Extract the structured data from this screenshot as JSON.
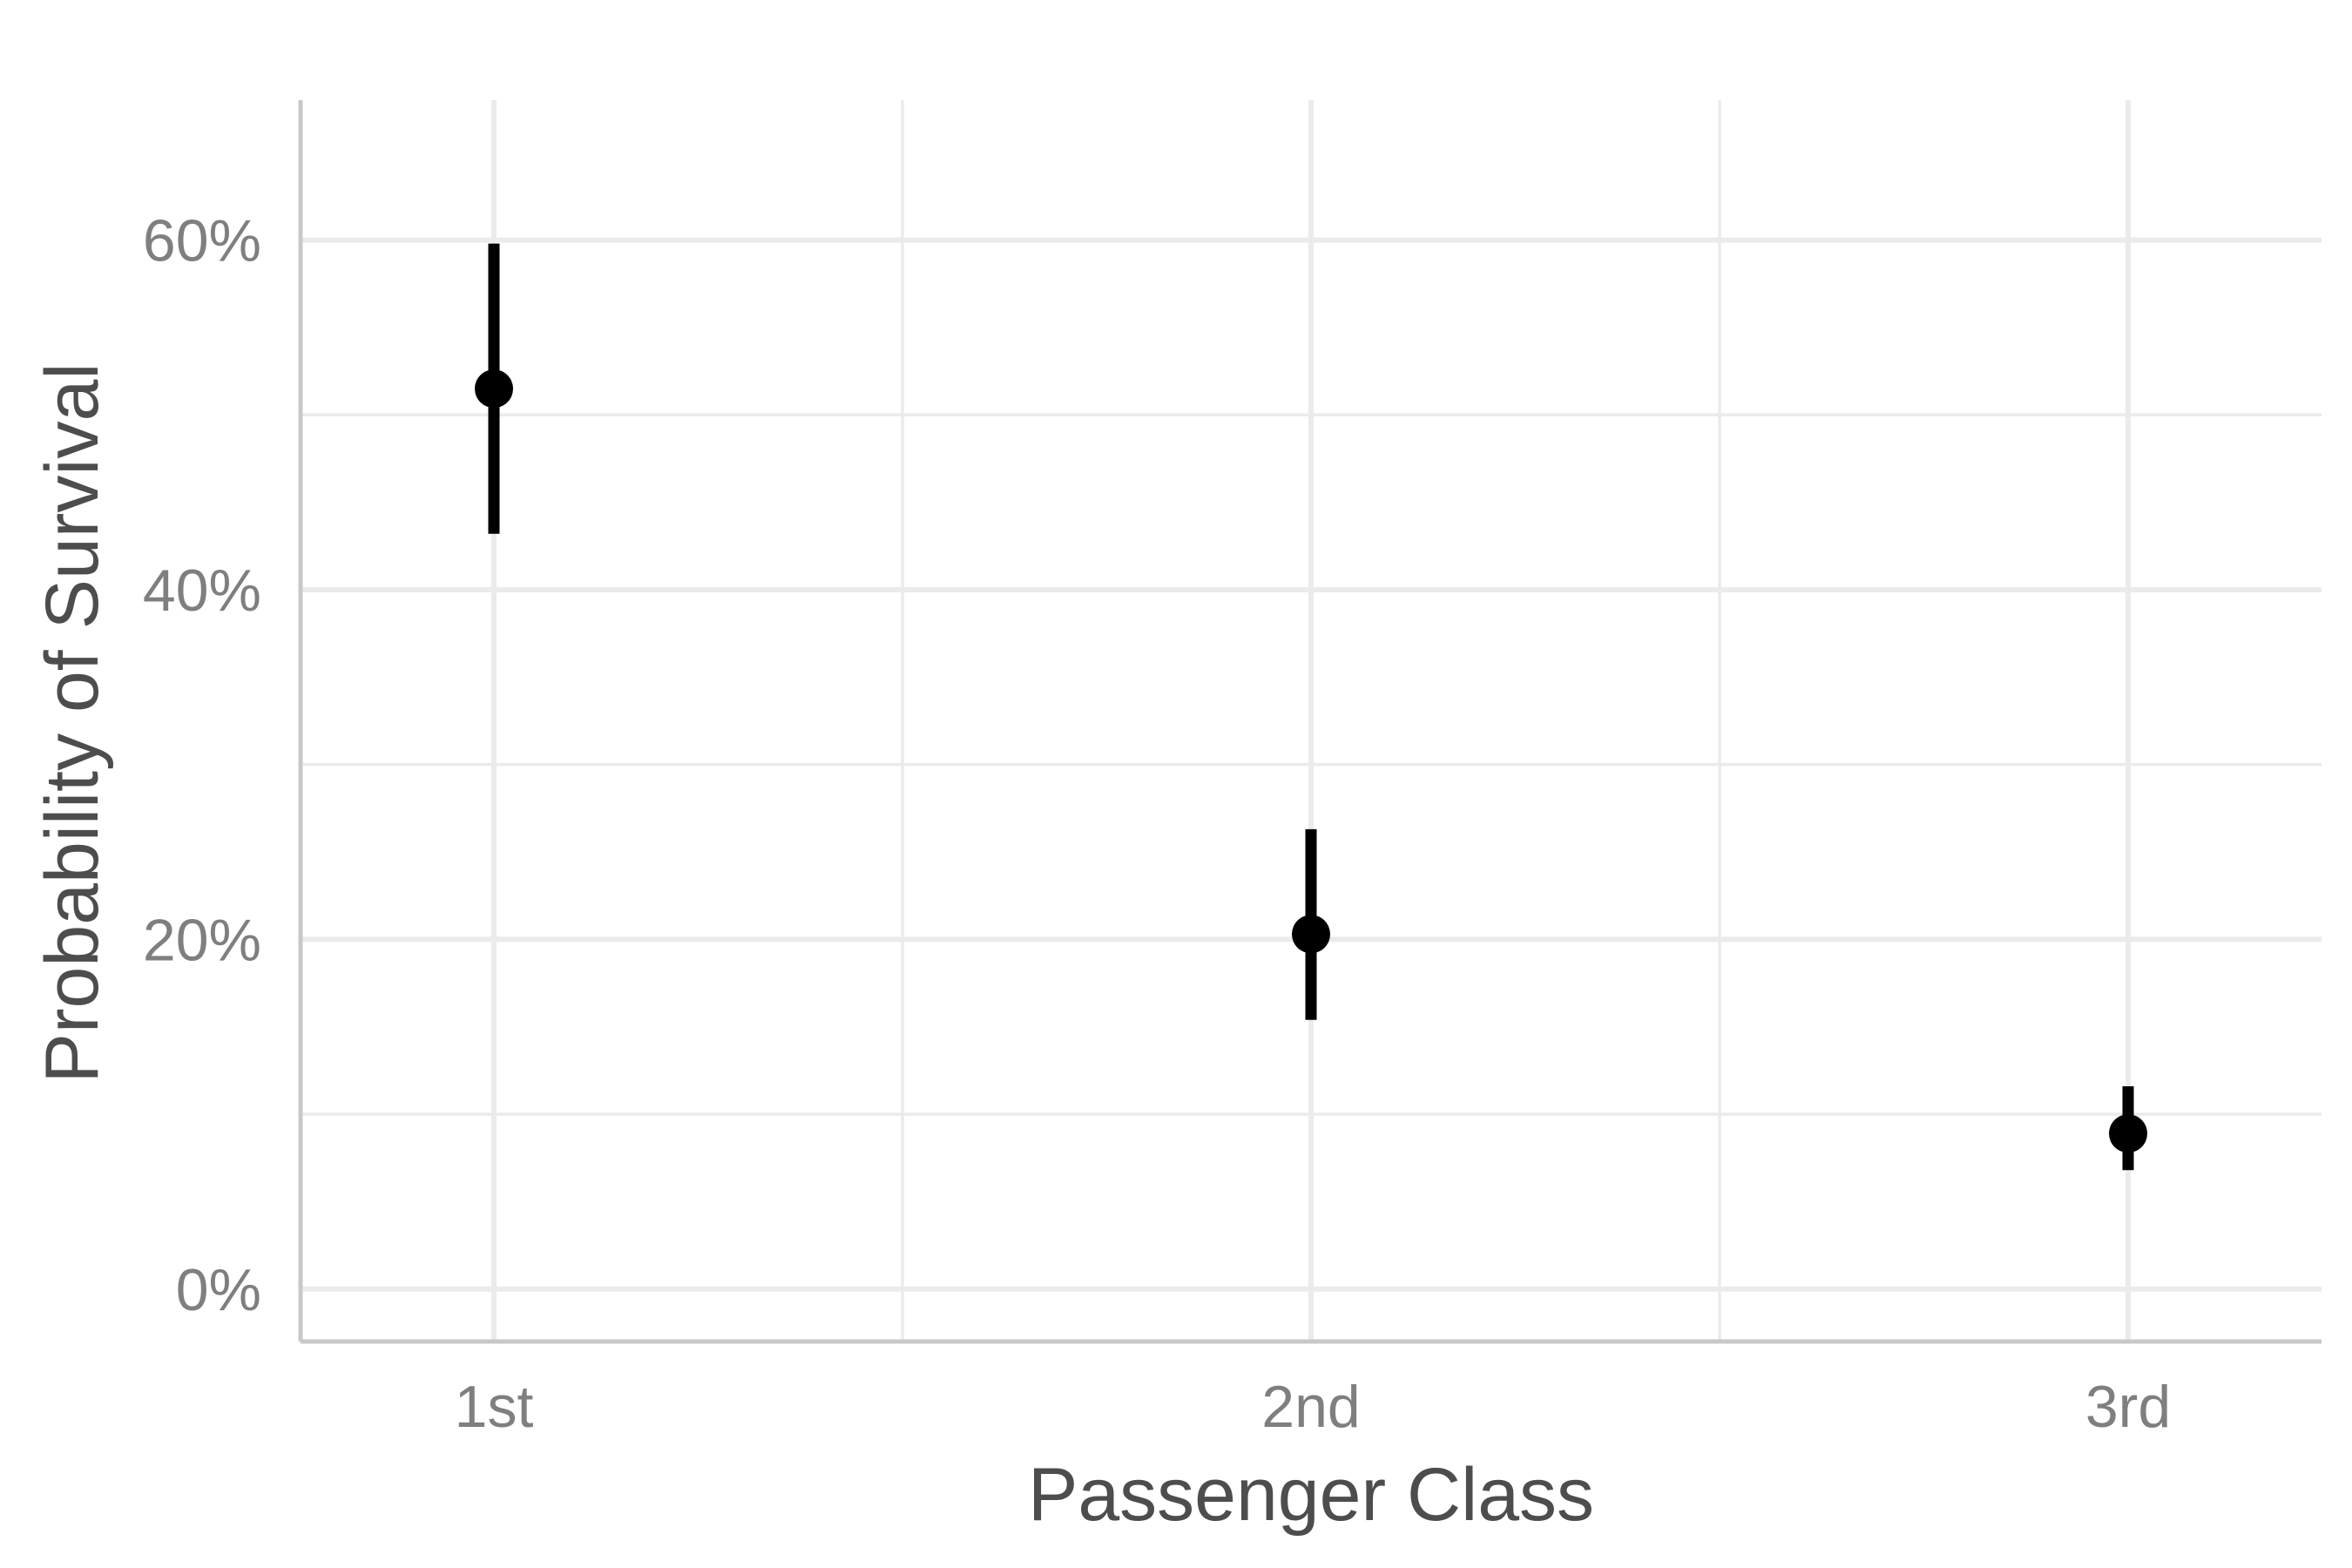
{
  "chart_data": {
    "type": "scatter",
    "title": "",
    "xlabel": "Passenger Class",
    "ylabel": "Probability of Survival",
    "categories": [
      "1st",
      "2nd",
      "3rd"
    ],
    "series": [
      {
        "values": [
          0.515,
          0.203,
          0.089
        ],
        "lower": [
          0.432,
          0.154,
          0.068
        ],
        "upper": [
          0.598,
          0.263,
          0.116
        ]
      }
    ],
    "ylim": [
      -0.03,
      0.68
    ],
    "yticks": [
      0,
      0.2,
      0.4,
      0.6
    ],
    "ytick_labels": [
      "0%",
      "20%",
      "40%",
      "60%"
    ],
    "grid": true,
    "legend": "none",
    "colors": {
      "point": "#000000",
      "grid": "#ebebeb",
      "axis": "#c8c8c8",
      "tick_text": "#7f7f7f",
      "title_text": "#4d4d4d"
    }
  }
}
